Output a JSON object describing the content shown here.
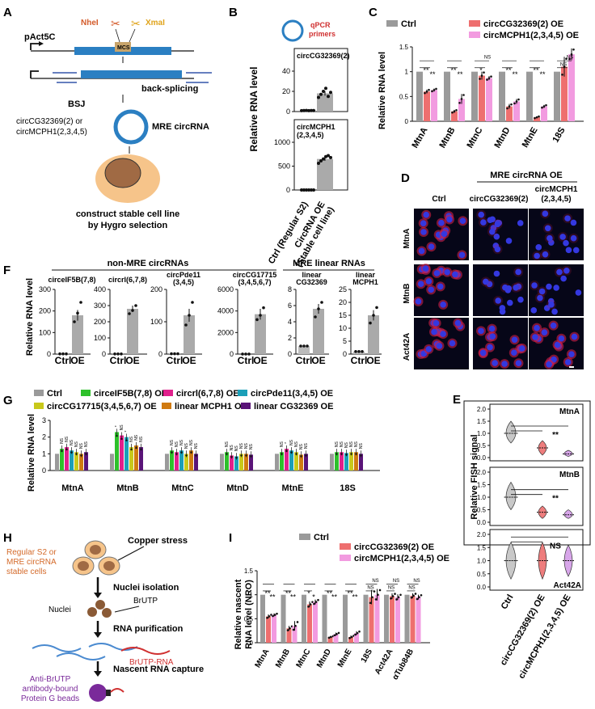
{
  "colors": {
    "ctrl": "#9a9a9a",
    "circCG": "#ee6f6f",
    "circMCPH": "#f29be0",
    "gray": "#aaaaaa",
    "g": [
      "#9a9a9a",
      "#2ec02b",
      "#e0208c",
      "#1b9fb8",
      "#c8c81b",
      "#d07a10",
      "#5a1478"
    ],
    "fish_ctrl": "#c8c8c8",
    "fish_cg": "#ee7d7d",
    "fish_mc": "#d8a6ea"
  },
  "icons": [
    "scissors-icon",
    "circrna-ring-icon",
    "cell-icon",
    "tube-icon",
    "bead-icon",
    "fluorescence-image"
  ],
  "panelA": {
    "label": "A",
    "plasmid": "pAct5C",
    "nhe": "NheI",
    "xma": "XmaI",
    "mcs": "MCS",
    "backsplice": "back-splicing",
    "bsj": "BSJ",
    "names": "circCG32369(2) or\ncircMCPH1(2,3,4,5)",
    "mre": "MRE circRNA",
    "step": "construct stable cell line\nby Hygro selection"
  },
  "panelB": {
    "label": "B",
    "primers": "qPCR\nprimers",
    "ylabel": "Relative RNA level",
    "xticks": [
      "Ctrl (Regular S2)",
      "CircRNA OE\n(Stable cell line)"
    ]
  },
  "panelC": {
    "label": "C",
    "ylabel": "Relative RNA level"
  },
  "panelD": {
    "label": "D",
    "header": "MRE circRNA OE",
    "cols": [
      "Ctrl",
      "circCG32369(2)",
      "circMCPH1\n(2,3,4,5)"
    ],
    "rows": [
      "MtnA",
      "MtnB",
      "Act42A"
    ]
  },
  "panelE": {
    "label": "E",
    "ylabel": "Relative FISH signal",
    "xticks": [
      "Ctrl",
      "circCG32369(2) OE",
      "circMCPH1(2,3,4,5) OE"
    ]
  },
  "panelF": {
    "label": "F",
    "group1": "non-MRE circRNAs",
    "group2": "MRE linear RNAs",
    "ylabel": "Relative RNA level",
    "xticks": [
      "Ctrl",
      "OE"
    ]
  },
  "panelG": {
    "label": "G",
    "ylabel": "Relative RNA level"
  },
  "panelH": {
    "label": "H",
    "source": "Regular S2 or\nMRE circRNA\nstable cells",
    "copper": "Copper stress",
    "nuclei_iso": "Nuclei isolation",
    "nuclei": "Nuclei",
    "brutp": "BrUTP",
    "purif": "RNA purification",
    "brutp_rna": "BrUTP-RNA",
    "capture": "Nascent RNA capture",
    "beads": "Anti-BrUTP\nantibody-bound\nProtein G beads"
  },
  "panelI": {
    "label": "I",
    "ylabel": "Relative nascent\nRNA level (NRO)"
  },
  "chart_data": [
    {
      "id": "B1",
      "type": "bar",
      "title": "circCG32369(2)",
      "categories": [
        "Ctrl (Regular S2)",
        "CircRNA OE (Stable cell line)"
      ],
      "values": [
        1,
        18
      ],
      "ylim": [
        0,
        40
      ],
      "yticks": [
        0,
        20,
        40
      ],
      "points": [
        [
          0.9,
          1,
          1.1,
          0.95,
          1.05,
          1
        ],
        [
          14,
          17,
          20,
          23,
          15,
          19
        ]
      ],
      "err": [
        0,
        2.3
      ]
    },
    {
      "id": "B2",
      "type": "bar",
      "title": "circMCPH1\n(2,3,4,5)",
      "categories": [
        "Ctrl (Regular S2)",
        "CircRNA OE (Stable cell line)"
      ],
      "values": [
        1,
        650
      ],
      "ylim": [
        0,
        1000
      ],
      "yticks": [
        0,
        500,
        1000
      ],
      "points": [
        [
          1,
          1,
          1,
          1,
          1,
          1
        ],
        [
          560,
          610,
          650,
          700,
          720,
          680
        ]
      ],
      "err": [
        0,
        38
      ]
    },
    {
      "id": "C",
      "type": "bar",
      "ylim": [
        0,
        1.5
      ],
      "yticks": [
        0,
        0.5,
        1.0,
        1.5
      ],
      "legend": [
        "Ctrl",
        "circCG32369(2) OE",
        "circMCPH1(2,3,4,5) OE"
      ],
      "categories": [
        "MtnA",
        "MtnB",
        "MtnC",
        "MtnD",
        "MtnE",
        "18S"
      ],
      "series": [
        {
          "name": "Ctrl",
          "values": [
            1,
            1,
            1,
            1,
            1,
            1
          ]
        },
        {
          "name": "circCG32369(2) OE",
          "values": [
            0.6,
            0.2,
            0.92,
            0.3,
            0.08,
            1.1
          ]
        },
        {
          "name": "circMCPH1(2,3,4,5) OE",
          "values": [
            0.63,
            0.45,
            0.87,
            0.4,
            0.3,
            1.35
          ]
        }
      ],
      "err": [
        [
          0,
          0,
          0,
          0,
          0,
          0
        ],
        [
          0.04,
          0.03,
          0.08,
          0.05,
          0.02,
          0.2
        ],
        [
          0.03,
          0.1,
          0.04,
          0.05,
          0.03,
          0.12
        ]
      ],
      "sig": [
        [
          "**",
          "**"
        ],
        [
          "**",
          "**"
        ],
        [
          "*",
          "NS"
        ],
        [
          "**",
          "**"
        ],
        [
          "**",
          "**"
        ],
        [
          "NS",
          "NS"
        ]
      ]
    },
    {
      "id": "E",
      "type": "violin",
      "groups": [
        "Ctrl",
        "circCG32369(2) OE",
        "circMCPH1(2,3,4,5) OE"
      ],
      "yticks": [
        0.0,
        0.5,
        1.0,
        1.5,
        2.0
      ],
      "subplots": [
        {
          "title": "MtnA",
          "medians": [
            1.0,
            0.4,
            0.15
          ],
          "ranges": [
            [
              0.6,
              1.5
            ],
            [
              0.1,
              0.7
            ],
            [
              0.05,
              0.3
            ]
          ],
          "sig": "**"
        },
        {
          "title": "MtnB",
          "medians": [
            1.0,
            0.4,
            0.3
          ],
          "ranges": [
            [
              0.5,
              1.6
            ],
            [
              0.15,
              0.65
            ],
            [
              0.15,
              0.5
            ]
          ],
          "sig": "**"
        },
        {
          "title": "Act42A",
          "medians": [
            1.0,
            1.0,
            1.0
          ],
          "ranges": [
            [
              0.3,
              1.7
            ],
            [
              0.3,
              1.7
            ],
            [
              0.4,
              1.6
            ]
          ],
          "sig": "NS"
        }
      ]
    },
    {
      "id": "F",
      "type": "bar",
      "xticks": [
        "Ctrl",
        "OE"
      ],
      "subplots": [
        {
          "title": "circeIF5B(7,8)",
          "values": [
            1,
            180
          ],
          "ylim": [
            0,
            300
          ],
          "yticks": [
            0,
            100,
            200,
            300
          ],
          "points": [
            [
              1,
              1,
              1
            ],
            [
              150,
              190,
              240
            ]
          ],
          "err": [
            0,
            25
          ]
        },
        {
          "title": "circrl(6,7,8)",
          "values": [
            1,
            280
          ],
          "ylim": [
            0,
            400
          ],
          "yticks": [
            0,
            100,
            200,
            300,
            400
          ],
          "points": [
            [
              1,
              1,
              1
            ],
            [
              250,
              270,
              300
            ]
          ],
          "err": [
            0,
            20
          ]
        },
        {
          "title": "circPde11\n(3,4,5)",
          "values": [
            1,
            120
          ],
          "ylim": [
            0,
            200
          ],
          "yticks": [
            0,
            100,
            200
          ],
          "points": [
            [
              1,
              1,
              1
            ],
            [
              90,
              120,
              160
            ]
          ],
          "err": [
            0,
            20
          ]
        },
        {
          "title": "circCG17715\n(3,4,5,6,7)",
          "values": [
            1,
            3700
          ],
          "ylim": [
            0,
            6000
          ],
          "yticks": [
            0,
            2000,
            4000,
            6000
          ],
          "points": [
            [
              1,
              1,
              1
            ],
            [
              3200,
              3600,
              4300
            ]
          ],
          "err": [
            0,
            500
          ]
        },
        {
          "title": "linear\nCG32369",
          "values": [
            1,
            5.6
          ],
          "ylim": [
            0,
            8
          ],
          "yticks": [
            0,
            2,
            4,
            6,
            8
          ],
          "points": [
            [
              1,
              1,
              1
            ],
            [
              4.6,
              5.6,
              6.4
            ]
          ],
          "err": [
            0,
            0.6
          ]
        },
        {
          "title": "linear\nMCPH1",
          "values": [
            1,
            15
          ],
          "ylim": [
            0,
            25
          ],
          "yticks": [
            0,
            5,
            10,
            15,
            20,
            25
          ],
          "points": [
            [
              1,
              1,
              1
            ],
            [
              12,
              15,
              18
            ]
          ],
          "err": [
            0,
            2
          ]
        }
      ]
    },
    {
      "id": "G",
      "type": "bar",
      "ylim": [
        0,
        3.0
      ],
      "yticks": [
        0,
        1.0,
        2.0,
        3.0
      ],
      "categories": [
        "MtnA",
        "MtnB",
        "MtnC",
        "MtnD",
        "MtnE",
        "18S"
      ],
      "series": [
        {
          "name": "Ctrl",
          "values": [
            1,
            1,
            1,
            1,
            1,
            1
          ]
        },
        {
          "name": "circeIF5B(7,8) OE",
          "values": [
            1.3,
            2.3,
            1.2,
            1.1,
            1.1,
            1.1
          ]
        },
        {
          "name": "circrl(6,7,8) OE",
          "values": [
            1.4,
            2.1,
            1.1,
            0.9,
            1.3,
            1.1
          ]
        },
        {
          "name": "circPde11(3,4,5) OE",
          "values": [
            1.2,
            2.0,
            1.2,
            0.85,
            1.2,
            1.05
          ]
        },
        {
          "name": "circCG17715(3,4,5,6,7) OE",
          "values": [
            1.1,
            1.4,
            1.0,
            1.0,
            1.1,
            1.1
          ]
        },
        {
          "name": "linear MCPH1 OE",
          "values": [
            1.0,
            1.5,
            1.2,
            1.0,
            0.95,
            1.1
          ]
        },
        {
          "name": "linear CG32369 OE",
          "values": [
            1.1,
            1.4,
            1.0,
            0.95,
            1.0,
            1.0
          ]
        }
      ],
      "sig": [
        [
          "NS",
          "NS",
          "NS",
          "NS",
          "NS",
          "NS"
        ],
        [
          "*",
          "NS",
          "*",
          "NS",
          "NS",
          "NS"
        ],
        [
          "NS",
          "NS",
          "NS",
          "NS",
          "NS",
          "NS"
        ],
        [
          "NS",
          "NS",
          "NS",
          "NS",
          "NS",
          "NS"
        ],
        [
          "NS",
          "*",
          "NS",
          "NS",
          "NS",
          "NS"
        ],
        [
          "NS",
          "NS",
          "NS",
          "NS",
          "NS",
          "NS"
        ]
      ]
    },
    {
      "id": "I",
      "type": "bar",
      "ylim": [
        0,
        1.5
      ],
      "yticks": [
        0,
        0.5,
        1.0,
        1.5
      ],
      "legend": [
        "Ctrl",
        "circCG32369(2) OE",
        "circMCPH1(2,3,4,5) OE"
      ],
      "categories": [
        "MtnA",
        "MtnB",
        "MtnC",
        "MtnD",
        "MtnE",
        "18S",
        "Act42A",
        "αTub84B"
      ],
      "series": [
        {
          "name": "Ctrl",
          "values": [
            1,
            1,
            1,
            1,
            1,
            1,
            1,
            1
          ]
        },
        {
          "name": "circCG32369(2) OE",
          "values": [
            0.55,
            0.3,
            0.8,
            0.12,
            0.12,
            0.95,
            0.97,
            0.98
          ]
        },
        {
          "name": "circMCPH1(2,3,4,5) OE",
          "values": [
            0.58,
            0.35,
            0.85,
            0.18,
            0.2,
            1.0,
            0.95,
            0.95
          ]
        }
      ],
      "err": [
        [
          0,
          0,
          0,
          0,
          0,
          0,
          0,
          0
        ],
        [
          0.04,
          0.05,
          0.06,
          0.02,
          0.03,
          0.15,
          0.06,
          0.05
        ],
        [
          0.03,
          0.1,
          0.05,
          0.03,
          0.04,
          0.12,
          0.06,
          0.05
        ]
      ],
      "sig": [
        [
          "**",
          "**"
        ],
        [
          "**",
          "**"
        ],
        [
          "*",
          "*"
        ],
        [
          "**",
          "**"
        ],
        [
          "**",
          "**"
        ],
        [
          "NS",
          "NS"
        ],
        [
          "NS",
          "NS"
        ],
        [
          "NS",
          "NS"
        ]
      ]
    }
  ]
}
